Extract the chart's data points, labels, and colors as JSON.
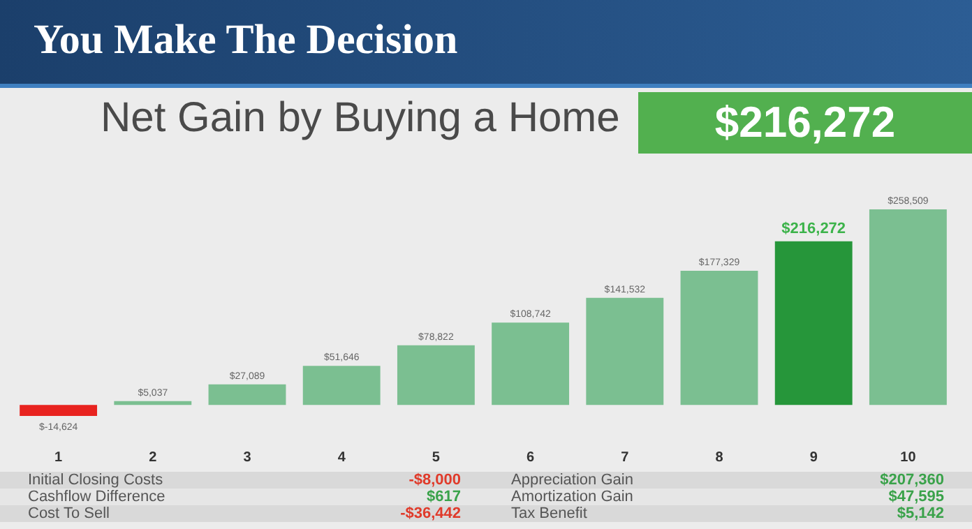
{
  "chart_data": {
    "type": "bar",
    "title": "You Make The Decision",
    "subtitle": "Net Gain by Buying a Home",
    "categories": [
      "1",
      "2",
      "3",
      "4",
      "5",
      "6",
      "7",
      "8",
      "9",
      "10"
    ],
    "values": [
      -14624,
      5037,
      27089,
      51646,
      78822,
      108742,
      141532,
      177329,
      216272,
      258509
    ],
    "colors": [
      "#e8231f",
      "#7bbf91",
      "#7bbf91",
      "#7bbf91",
      "#7bbf91",
      "#7bbf91",
      "#7bbf91",
      "#7bbf91",
      "#26963a",
      "#7bbf91"
    ],
    "value_labels": [
      "$-14,624",
      "$5,037",
      "$27,089",
      "$51,646",
      "$78,822",
      "$108,742",
      "$141,532",
      "$177,329",
      "$216,272",
      "$258,509"
    ],
    "annotations": [
      "$216,272",
      "Initial Closing Costs",
      "-$8,000",
      "Appreciation Gain",
      "$207,360",
      "Cashflow Difference",
      "$617",
      "Amortization Gain",
      "$47,595",
      "Cost To Sell",
      "-$36,442",
      "Tax Benefit",
      "$5,142"
    ]
  }
}
